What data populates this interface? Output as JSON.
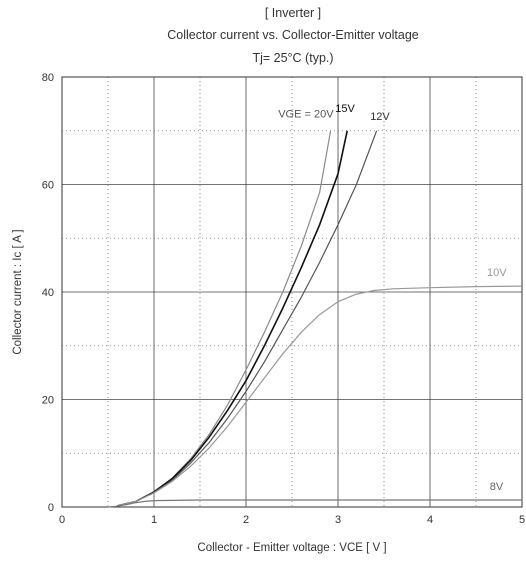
{
  "header": {
    "line1": "[ Inverter ]",
    "line2": "Collector current  vs.  Collector-Emitter voltage",
    "line3": "Tj= 25°C  (typ.)"
  },
  "chart_data": {
    "type": "line",
    "title": "Collector current  vs.  Collector-Emitter voltage",
    "xlabel": "Collector - Emitter voltage  :  VCE  [ V ]",
    "ylabel": "Collector current  :  Ic  [ A ]",
    "xlim": [
      0,
      5
    ],
    "ylim": [
      0,
      80
    ],
    "x_ticks": [
      0,
      1,
      2,
      3,
      4,
      5
    ],
    "y_ticks": [
      0,
      20,
      40,
      60,
      80
    ],
    "grid": true,
    "series": [
      {
        "name": "VGE = 20V",
        "color": "#8a8a8a",
        "x": [
          0.6,
          0.8,
          1.0,
          1.2,
          1.4,
          1.6,
          1.8,
          2.0,
          2.2,
          2.4,
          2.6,
          2.8,
          2.92
        ],
        "y": [
          0.2,
          1.0,
          2.8,
          5.4,
          9.0,
          13.5,
          19.0,
          25.5,
          32.5,
          40.0,
          48.5,
          58.5,
          70
        ]
      },
      {
        "name": "15V",
        "color": "#111111",
        "x": [
          0.6,
          0.8,
          1.0,
          1.2,
          1.4,
          1.6,
          1.8,
          2.0,
          2.2,
          2.4,
          2.6,
          2.8,
          3.0,
          3.1
        ],
        "y": [
          0.2,
          1.0,
          2.8,
          5.3,
          8.7,
          13.0,
          18.0,
          23.5,
          30.0,
          37.0,
          44.5,
          52.5,
          62.0,
          70
        ]
      },
      {
        "name": "12V",
        "color": "#555555",
        "x": [
          0.6,
          0.8,
          1.0,
          1.2,
          1.4,
          1.6,
          1.8,
          2.0,
          2.2,
          2.4,
          2.6,
          2.8,
          3.0,
          3.2,
          3.42
        ],
        "y": [
          0.2,
          1.0,
          2.7,
          5.0,
          8.2,
          12.0,
          16.5,
          21.5,
          27.0,
          33.0,
          39.0,
          45.5,
          52.5,
          60.0,
          70
        ]
      },
      {
        "name": "10V",
        "color": "#999999",
        "x": [
          0.6,
          0.8,
          1.0,
          1.2,
          1.4,
          1.6,
          1.8,
          2.0,
          2.2,
          2.4,
          2.6,
          2.8,
          3.0,
          3.2,
          3.4,
          3.6,
          4.0,
          4.5,
          5.0
        ],
        "y": [
          0.2,
          1.0,
          2.6,
          4.8,
          7.6,
          11.0,
          15.0,
          19.5,
          24.0,
          28.5,
          32.5,
          35.8,
          38.2,
          39.6,
          40.3,
          40.6,
          40.8,
          41.0,
          41.1
        ]
      },
      {
        "name": "8V",
        "color": "#777777",
        "x": [
          0.5,
          0.6,
          0.7,
          0.8,
          0.9,
          1.0,
          1.5,
          2.0,
          3.0,
          4.0,
          5.0
        ],
        "y": [
          0.0,
          0.15,
          0.45,
          0.8,
          1.05,
          1.2,
          1.3,
          1.3,
          1.3,
          1.3,
          1.3
        ]
      }
    ],
    "curve_labels": [
      {
        "text": "VGE = 20V",
        "x": 2.35,
        "y": 72.5,
        "color": "#555555"
      },
      {
        "text": "15V",
        "x": 2.97,
        "y": 73.5,
        "color": "#111111"
      },
      {
        "text": "12V",
        "x": 3.35,
        "y": 72.0,
        "color": "#333333"
      },
      {
        "text": "10V",
        "x": 4.62,
        "y": 43.0,
        "color": "#999999"
      },
      {
        "text": "8V",
        "x": 4.65,
        "y": 3.2,
        "color": "#666666"
      }
    ]
  }
}
